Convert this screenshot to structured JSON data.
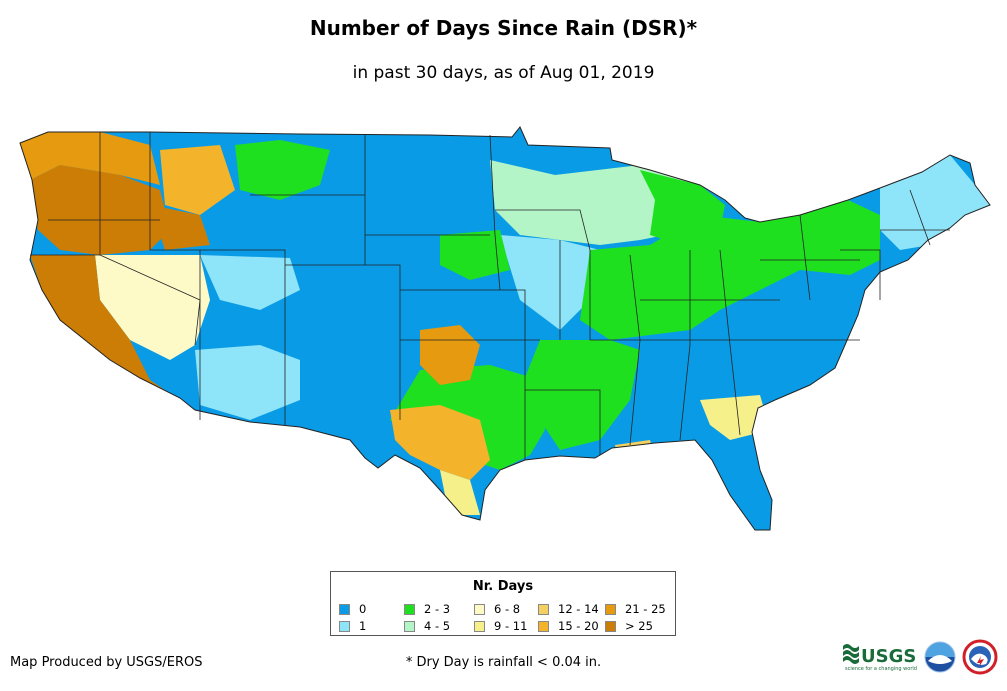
{
  "title": "Number of Days Since Rain (DSR)*",
  "subtitle": "in past 30 days, as of Aug 01, 2019",
  "legend": {
    "title": "Nr. Days",
    "items": [
      {
        "label": "0",
        "color": "#0a9be6"
      },
      {
        "label": "1",
        "color": "#8ee4f8"
      },
      {
        "label": "2 - 3",
        "color": "#1fe01f"
      },
      {
        "label": "4 - 5",
        "color": "#b4f5c8"
      },
      {
        "label": "6 - 8",
        "color": "#fdfac8"
      },
      {
        "label": "9 - 11",
        "color": "#f6f08a"
      },
      {
        "label": "12 - 14",
        "color": "#f4d060"
      },
      {
        "label": "15 - 20",
        "color": "#f3b42c"
      },
      {
        "label": "21 - 25",
        "color": "#e69a10"
      },
      {
        "label": "> 25",
        "color": "#cc7d05"
      }
    ]
  },
  "credit": "Map Produced by USGS/EROS",
  "footnote": "* Dry Day is rainfall < 0.04 in.",
  "logos": {
    "usgs": "USGS",
    "usgs_tagline": "science for a changing world",
    "noaa_icon": "noaa-logo-icon",
    "nws_icon": "national-weather-service-logo-icon"
  }
}
